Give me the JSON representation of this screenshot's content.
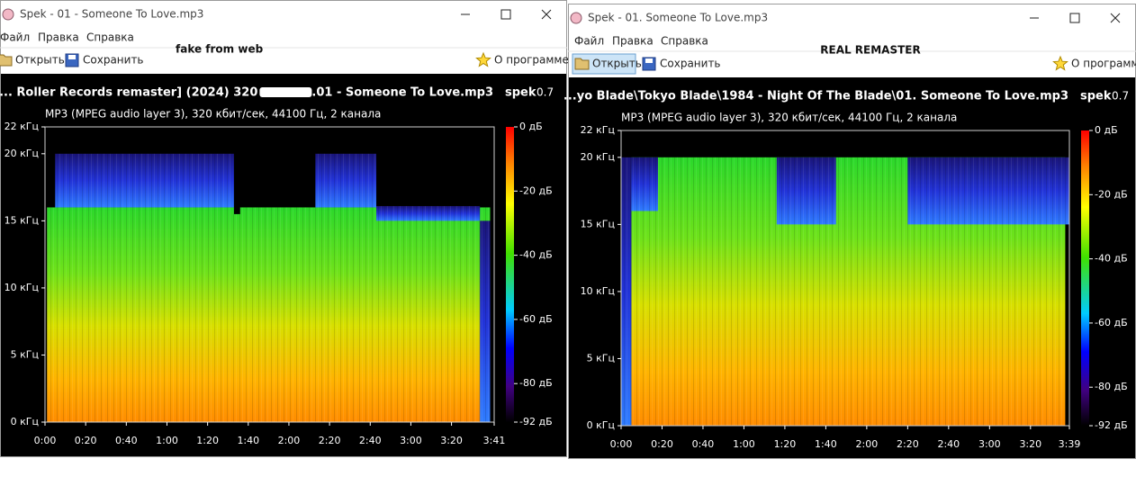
{
  "windows": [
    {
      "title": "Spek - 01 - Someone To Love.mp3",
      "menu": [
        "Файл",
        "Правка",
        "Справка"
      ],
      "open": "Открыть",
      "save": "Сохранить",
      "about": "О программе",
      "note": "fake from web",
      "file": [
        "... Roller Records remaster] (2024) 320",
        ".01 - Someone To Love.mp3"
      ],
      "app": "spek",
      "version": "0.7",
      "info": "MP3 (MPEG audio layer 3), 320 кбит/сек, 44100 Гц, 2 канала",
      "freq_labels": [
        "22 кГц",
        "20 кГц",
        "15 кГц",
        "10 кГц",
        "5 кГц",
        "0 кГц"
      ],
      "time_labels": [
        "0:00",
        "0:20",
        "0:40",
        "1:00",
        "1:20",
        "1:40",
        "2:00",
        "2:20",
        "2:40",
        "3:00",
        "3:20",
        "3:41"
      ],
      "db_labels": [
        "0 дБ",
        "-20 дБ",
        "-40 дБ",
        "-60 дБ",
        "-80 дБ",
        "-92 дБ"
      ]
    },
    {
      "title": "Spek - 01. Someone To Love.mp3",
      "menu": [
        "Файл",
        "Правка",
        "Справка"
      ],
      "open": "Открыть",
      "save": "Сохранить",
      "about": "О программе",
      "note": "REAL REMASTER",
      "file": [
        "...yo Blade\\Tokyo Blade\\1984 - Night Of The Blade\\01. Someone To Love.mp3"
      ],
      "app": "spek",
      "version": "0.7",
      "info": "MP3 (MPEG audio layer 3), 320 кбит/сек, 44100 Гц, 2 канала",
      "freq_labels": [
        "22 кГц",
        "20 кГц",
        "15 кГц",
        "10 кГц",
        "5 кГц",
        "0 кГц"
      ],
      "time_labels": [
        "0:00",
        "0:20",
        "0:40",
        "1:00",
        "1:20",
        "1:40",
        "2:00",
        "2:20",
        "2:40",
        "3:00",
        "3:20",
        "3:39"
      ],
      "db_labels": [
        "0 дБ",
        "-20 дБ",
        "-40 дБ",
        "-60 дБ",
        "-80 дБ",
        "-92 дБ"
      ]
    }
  ]
}
